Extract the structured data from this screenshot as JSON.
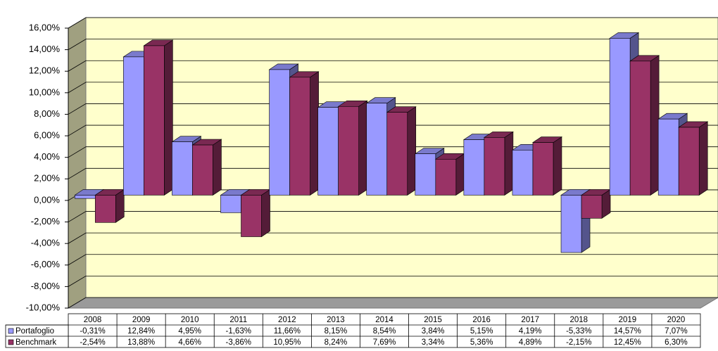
{
  "chart_data": {
    "type": "bar3d",
    "categories": [
      "2008",
      "2009",
      "2010",
      "2011",
      "2012",
      "2013",
      "2014",
      "2015",
      "2016",
      "2017",
      "2018",
      "2019",
      "2020"
    ],
    "series": [
      {
        "name": "Portafoglio",
        "color": "#9999ff",
        "values": [
          -0.31,
          12.84,
          4.95,
          -1.63,
          11.66,
          8.15,
          8.54,
          3.84,
          5.15,
          4.19,
          -5.33,
          14.57,
          7.07
        ],
        "value_labels": [
          "-0,31%",
          "12,84%",
          "4,95%",
          "-1,63%",
          "11,66%",
          "8,15%",
          "8,54%",
          "3,84%",
          "5,15%",
          "4,19%",
          "-5,33%",
          "14,57%",
          "7,07%"
        ]
      },
      {
        "name": "Benchmark",
        "color": "#993366",
        "values": [
          -2.54,
          13.88,
          4.66,
          -3.86,
          10.95,
          8.24,
          7.69,
          3.34,
          5.36,
          4.89,
          -2.15,
          12.45,
          6.3
        ],
        "value_labels": [
          "-2,54%",
          "13,88%",
          "4,66%",
          "-3,86%",
          "10,95%",
          "8,24%",
          "7,69%",
          "3,34%",
          "5,36%",
          "4,89%",
          "-2,15%",
          "12,45%",
          "6,30%"
        ]
      }
    ],
    "ylim": [
      -10,
      16
    ],
    "yticks": [
      {
        "value": -10,
        "label": "-10,00%"
      },
      {
        "value": -8,
        "label": "-8,00%"
      },
      {
        "value": -6,
        "label": "-6,00%"
      },
      {
        "value": -4,
        "label": "-4,00%"
      },
      {
        "value": -2,
        "label": "-2,00%"
      },
      {
        "value": 0,
        "label": "0,00%"
      },
      {
        "value": 2,
        "label": "2,00%"
      },
      {
        "value": 4,
        "label": "4,00%"
      },
      {
        "value": 6,
        "label": "6,00%"
      },
      {
        "value": 8,
        "label": "8,00%"
      },
      {
        "value": 10,
        "label": "10,00%"
      },
      {
        "value": 12,
        "label": "12,00%"
      },
      {
        "value": 14,
        "label": "14,00%"
      },
      {
        "value": 16,
        "label": "16,00%"
      }
    ],
    "grid": true
  }
}
